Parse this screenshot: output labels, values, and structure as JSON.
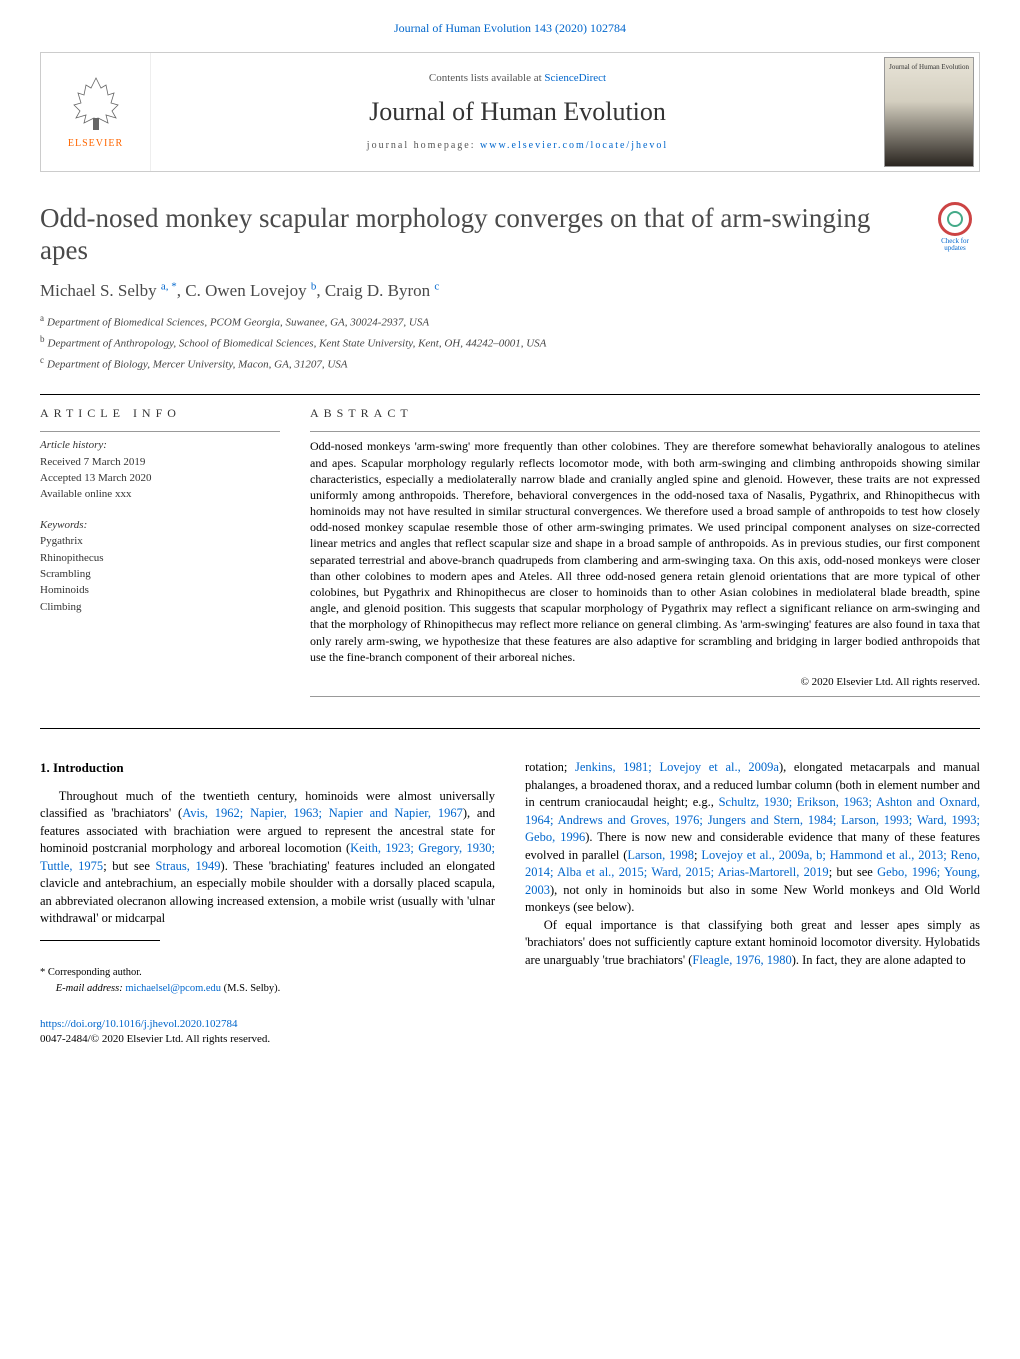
{
  "top_link": {
    "text": "Journal of Human Evolution 143 (2020) 102784",
    "url": "#"
  },
  "banner": {
    "contents_prefix": "Contents lists available at ",
    "sciencedirect": "ScienceDirect",
    "journal_name": "Journal of Human Evolution",
    "homepage_prefix": "journal homepage: ",
    "homepage_url": "www.elsevier.com/locate/jhevol",
    "elsevier": "ELSEVIER",
    "cover_text": "Journal\nof Human\nEvolution"
  },
  "check_updates": "Check for updates",
  "title": "Odd-nosed monkey scapular morphology converges on that of arm-swinging apes",
  "authors_html": "Michael S. Selby <sup>a, *</sup>, C. Owen Lovejoy <sup>b</sup>, Craig D. Byron <sup>c</sup>",
  "affiliations": {
    "a": "Department of Biomedical Sciences, PCOM Georgia, Suwanee, GA, 30024-2937, USA",
    "b": "Department of Anthropology, School of Biomedical Sciences, Kent State University, Kent, OH, 44242–0001, USA",
    "c": "Department of Biology, Mercer University, Macon, GA, 31207, USA"
  },
  "article_info": {
    "heading": "ARTICLE INFO",
    "history_label": "Article history:",
    "received": "Received 7 March 2019",
    "accepted": "Accepted 13 March 2020",
    "available": "Available online xxx",
    "keywords_label": "Keywords:",
    "keywords": [
      "Pygathrix",
      "Rhinopithecus",
      "Scrambling",
      "Hominoids",
      "Climbing"
    ]
  },
  "abstract": {
    "heading": "ABSTRACT",
    "text": "Odd-nosed monkeys 'arm-swing' more frequently than other colobines. They are therefore somewhat behaviorally analogous to atelines and apes. Scapular morphology regularly reflects locomotor mode, with both arm-swinging and climbing anthropoids showing similar characteristics, especially a mediolaterally narrow blade and cranially angled spine and glenoid. However, these traits are not expressed uniformly among anthropoids. Therefore, behavioral convergences in the odd-nosed taxa of Nasalis, Pygathrix, and Rhinopithecus with hominoids may not have resulted in similar structural convergences. We therefore used a broad sample of anthropoids to test how closely odd-nosed monkey scapulae resemble those of other arm-swinging primates. We used principal component analyses on size-corrected linear metrics and angles that reflect scapular size and shape in a broad sample of anthropoids. As in previous studies, our first component separated terrestrial and above-branch quadrupeds from clambering and arm-swinging taxa. On this axis, odd-nosed monkeys were closer than other colobines to modern apes and Ateles. All three odd-nosed genera retain glenoid orientations that are more typical of other colobines, but Pygathrix and Rhinopithecus are closer to hominoids than to other Asian colobines in mediolateral blade breadth, spine angle, and glenoid position. This suggests that scapular morphology of Pygathrix may reflect a significant reliance on arm-swinging and that the morphology of Rhinopithecus may reflect more reliance on general climbing. As 'arm-swinging' features are also found in taxa that only rarely arm-swing, we hypothesize that these features are also adaptive for scrambling and bridging in larger bodied anthropoids that use the fine-branch component of their arboreal niches.",
    "copyright": "© 2020 Elsevier Ltd. All rights reserved."
  },
  "intro": {
    "heading": "1. Introduction",
    "p1_pre": "Throughout much of the twentieth century, hominoids were almost universally classified as 'brachiators' (",
    "p1_cite1": "Avis, 1962; Napier, 1963; Napier and Napier, 1967",
    "p1_mid1": "), and features associated with brachiation were argued to represent the ancestral state for hominoid postcranial morphology and arboreal locomotion (",
    "p1_cite2": "Keith, 1923; Gregory, 1930; Tuttle, 1975",
    "p1_mid2": "; but see ",
    "p1_cite3": "Straus, 1949",
    "p1_end": "). These 'brachiating' features included an elongated clavicle and antebrachium, an especially mobile shoulder with a dorsally placed scapula, an abbreviated olecranon allowing increased extension, a mobile wrist (usually with 'ulnar withdrawal' or midcarpal",
    "p1b_pre": "rotation; ",
    "p1b_cite1": "Jenkins, 1981; Lovejoy et al., 2009a",
    "p1b_mid1": "), elongated metacarpals and manual phalanges, a broadened thorax, and a reduced lumbar column (both in element number and in centrum craniocaudal height; e.g., ",
    "p1b_cite2": "Schultz, 1930; Erikson, 1963; Ashton and Oxnard, 1964; Andrews and Groves, 1976; Jungers and Stern, 1984; Larson, 1993; Ward, 1993; Gebo, 1996",
    "p1b_mid2": "). There is now new and considerable evidence that many of these features evolved in parallel (",
    "p1b_cite3": "Larson, 1998",
    "p1b_mid3": "; ",
    "p1b_cite4": "Lovejoy et al., 2009a, b; Hammond et al., 2013; Reno, 2014; Alba et al., 2015; Ward, 2015; Arias-Martorell, 2019",
    "p1b_mid4": "; but see ",
    "p1b_cite5": "Gebo, 1996; Young, 2003",
    "p1b_end": "), not only in hominoids but also in some New World monkeys and Old World monkeys (see below).",
    "p2_pre": "Of equal importance is that classifying both great and lesser apes simply as 'brachiators' does not sufficiently capture extant hominoid locomotor diversity. Hylobatids are unarguably 'true brachiators' (",
    "p2_cite1": "Fleagle, 1976, 1980",
    "p2_end": "). In fact, they are alone adapted to"
  },
  "footer": {
    "corresp": "* Corresponding author.",
    "email_label": "E-mail address: ",
    "email": "michaelsel@pcom.edu",
    "email_suffix": " (M.S. Selby).",
    "doi": "https://doi.org/10.1016/j.jhevol.2020.102784",
    "bottom_copy": "0047-2484/© 2020 Elsevier Ltd. All rights reserved."
  },
  "colors": {
    "link": "#0066cc",
    "elsevier_orange": "#ff6600",
    "title_gray": "#4a4a4a"
  }
}
